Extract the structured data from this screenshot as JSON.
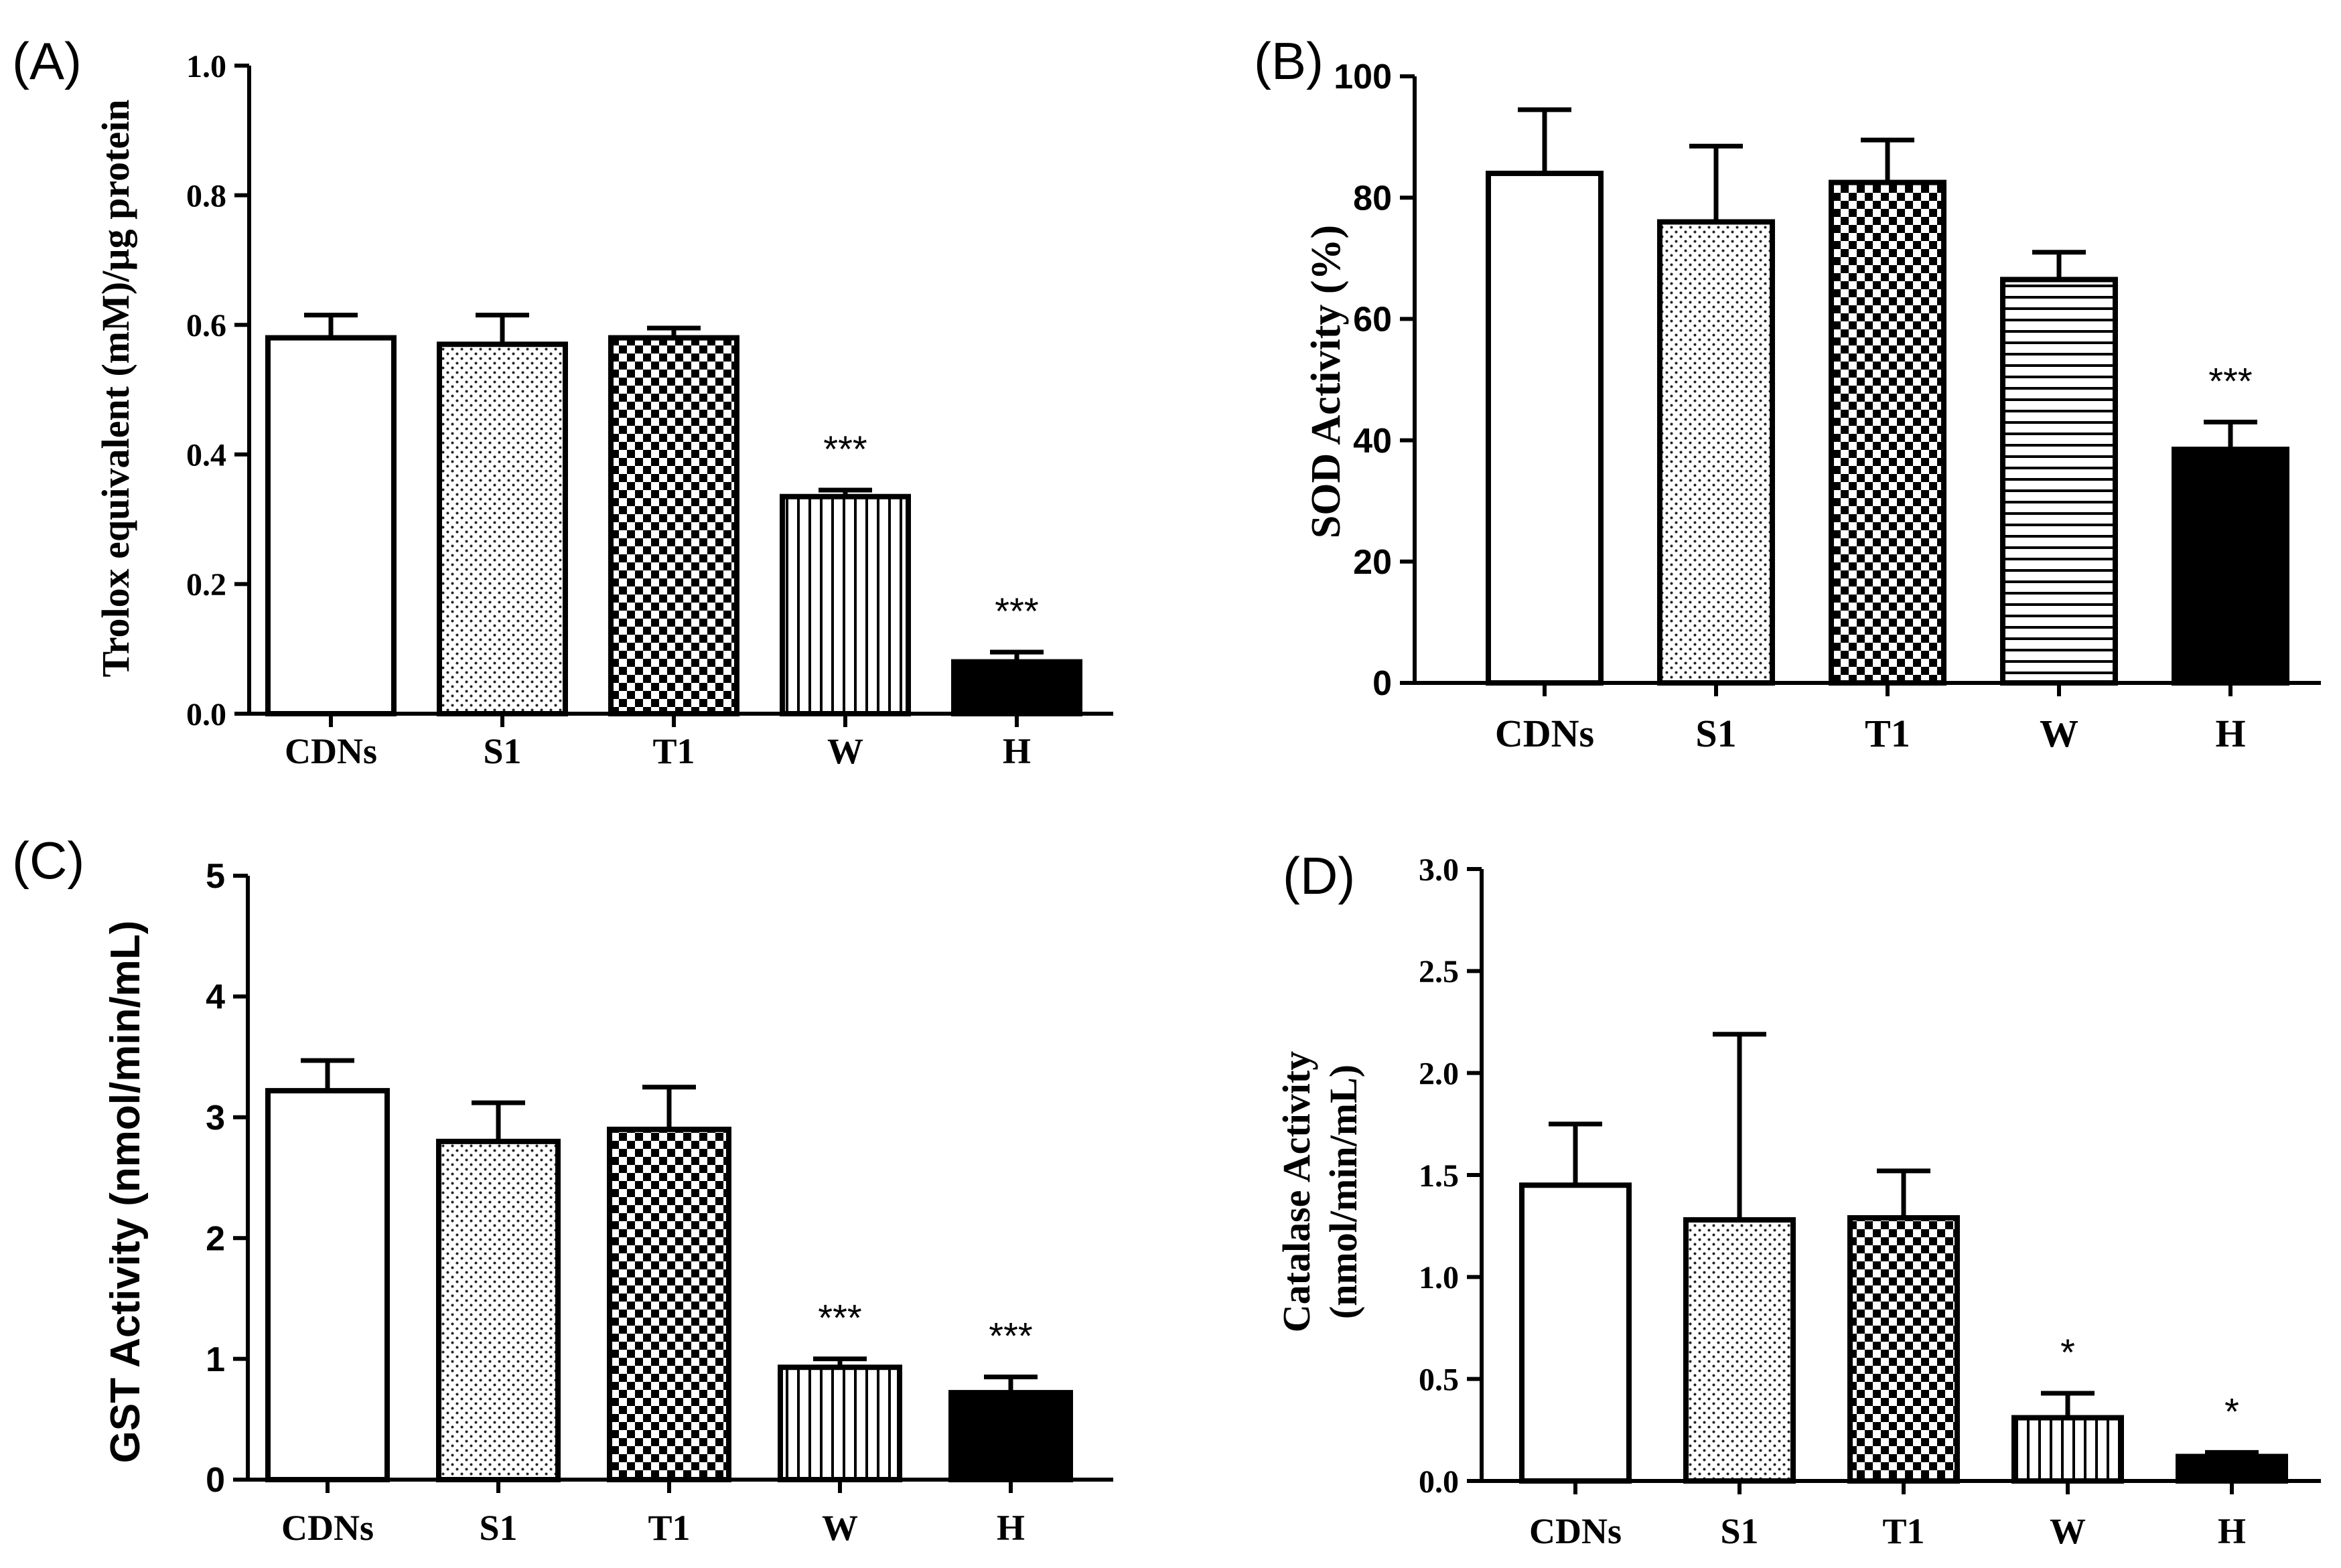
{
  "figure": {
    "x_categories": [
      "CDNs",
      "S1",
      "T1",
      "W",
      "H"
    ]
  },
  "chart_data": [
    {
      "panel": "(A)",
      "type": "bar",
      "title": "",
      "xlabel": "",
      "ylabel": "Trolox equivalent (mM)/µg protein",
      "ylim": [
        0,
        1.0
      ],
      "yticks": [
        0.0,
        0.2,
        0.4,
        0.6,
        0.8,
        1.0
      ],
      "ytick_labels": [
        "0.0",
        "0.2",
        "0.4",
        "0.6",
        "0.8",
        "1.0"
      ],
      "categories": [
        "CDNs",
        "S1",
        "T1",
        "W",
        "H"
      ],
      "values": [
        0.58,
        0.57,
        0.58,
        0.335,
        0.08
      ],
      "errors": [
        0.035,
        0.045,
        0.015,
        0.01,
        0.015
      ],
      "significance": [
        "",
        "",
        "",
        "***",
        "***"
      ],
      "patterns": [
        "open",
        "dots",
        "checker",
        "vertical",
        "solid"
      ]
    },
    {
      "panel": "(B)",
      "type": "bar",
      "title": "",
      "xlabel": "",
      "ylabel": "SOD Activity (%)",
      "ylim": [
        0,
        100
      ],
      "yticks": [
        0,
        20,
        40,
        60,
        80,
        100
      ],
      "ytick_labels": [
        "0",
        "20",
        "40",
        "60",
        "80",
        "100"
      ],
      "categories": [
        "CDNs",
        "S1",
        "T1",
        "W",
        "H"
      ],
      "values": [
        84,
        76,
        82.5,
        66.5,
        38.5
      ],
      "errors": [
        10.5,
        12.5,
        7,
        4.5,
        4.5
      ],
      "significance": [
        "",
        "",
        "",
        "",
        "***"
      ],
      "patterns": [
        "open",
        "dots",
        "checker",
        "horizontal",
        "solid"
      ]
    },
    {
      "panel": "(C)",
      "type": "bar",
      "title": "",
      "xlabel": "",
      "ylabel": "GST Activity (nmol/min/mL)",
      "ylim": [
        0,
        5
      ],
      "yticks": [
        0,
        1,
        2,
        3,
        4,
        5
      ],
      "ytick_labels": [
        "0",
        "1",
        "2",
        "3",
        "4",
        "5"
      ],
      "categories": [
        "CDNs",
        "S1",
        "T1",
        "W",
        "H"
      ],
      "values": [
        3.22,
        2.8,
        2.9,
        0.93,
        0.72
      ],
      "errors": [
        0.25,
        0.32,
        0.35,
        0.07,
        0.13
      ],
      "significance": [
        "",
        "",
        "",
        "***",
        "***"
      ],
      "patterns": [
        "open",
        "dots",
        "checker",
        "vertical",
        "solid"
      ]
    },
    {
      "panel": "(D)",
      "type": "bar",
      "title": "",
      "xlabel": "",
      "ylabel": "Catalase Activity",
      "ylabel2": "(nmol/min/mL)",
      "ylim": [
        0,
        3.0
      ],
      "yticks": [
        0.0,
        0.5,
        1.0,
        1.5,
        2.0,
        2.5,
        3.0
      ],
      "ytick_labels": [
        "0.0",
        "0.5",
        "1.0",
        "1.5",
        "2.0",
        "2.5",
        "3.0"
      ],
      "categories": [
        "CDNs",
        "S1",
        "T1",
        "W",
        "H"
      ],
      "values": [
        1.45,
        1.28,
        1.29,
        0.31,
        0.12
      ],
      "errors": [
        0.3,
        0.91,
        0.23,
        0.12,
        0.02
      ],
      "significance": [
        "",
        "",
        "",
        "*",
        "*"
      ],
      "patterns": [
        "open",
        "dots",
        "checker",
        "vertical",
        "solid"
      ]
    }
  ]
}
